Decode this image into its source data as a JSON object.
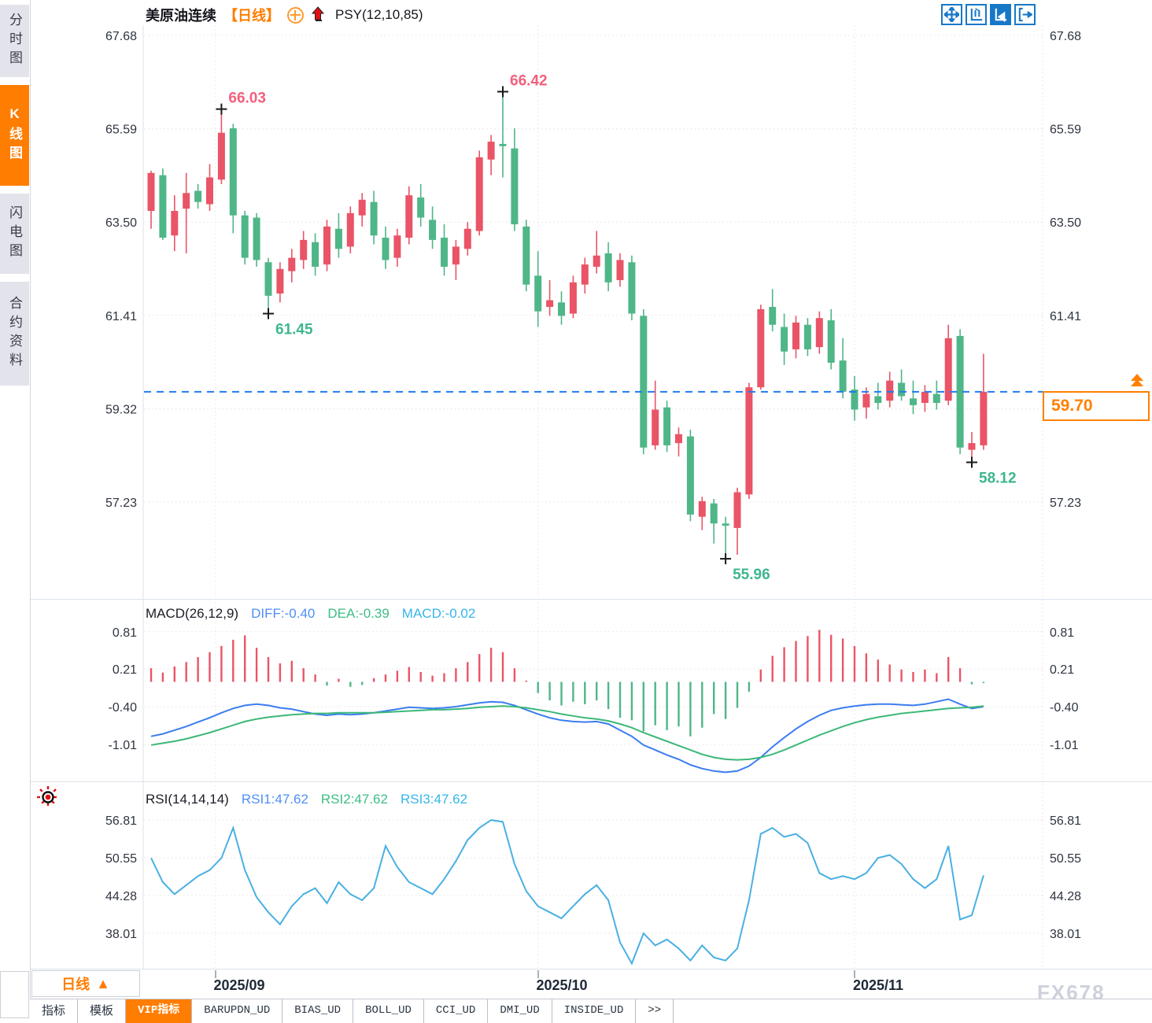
{
  "window": {
    "watermark": "FX678"
  },
  "sidebar": {
    "items": [
      {
        "label": "分时图",
        "active": false
      },
      {
        "label": "K线图",
        "active": true
      },
      {
        "label": "闪电图",
        "active": false
      },
      {
        "label": "合约资料",
        "active": false
      }
    ]
  },
  "header": {
    "title": "美原油连续",
    "period_tag": "【日线】",
    "indicator": "PSY(12,10,85)"
  },
  "toolbar_icons": [
    "pan-crosshair-icon",
    "axis-zoom-icon",
    "chart-zoom-icon",
    "shift-right-icon"
  ],
  "macd_header": {
    "name": "MACD(26,12,9)",
    "diff": "DIFF:-0.40",
    "dea": "DEA:-0.39",
    "macd": "MACD:-0.02"
  },
  "rsi_header": {
    "name": "RSI(14,14,14)",
    "rsi1": "RSI1:47.62",
    "rsi2": "RSI2:47.62",
    "rsi3": "RSI3:47.62"
  },
  "price_box": {
    "value": "59.70"
  },
  "period_button": {
    "label": "日线",
    "arrow": "▲"
  },
  "bottom_tabs": {
    "items": [
      {
        "label": "指标",
        "active": false
      },
      {
        "label": "模板",
        "active": false
      },
      {
        "label": "VIP指标",
        "active": true
      },
      {
        "label": "BARUPDN_UD",
        "active": false
      },
      {
        "label": "BIAS_UD",
        "active": false
      },
      {
        "label": "BOLL_UD",
        "active": false
      },
      {
        "label": "CCI_UD",
        "active": false
      },
      {
        "label": "DMI_UD",
        "active": false
      },
      {
        "label": "INSIDE_UD",
        "active": false
      },
      {
        "label": ">>",
        "active": false
      }
    ]
  },
  "colors": {
    "accent_orange": "#ff7d00",
    "candle_up": "#ea5467",
    "candle_down": "#4fb687",
    "diff_line": "#3b7df0",
    "dea_line": "#3cb878",
    "rsi_line": "#49b0e3",
    "current_price_line": "#1f7bf0",
    "high_label": "#f2607d",
    "low_label": "#3eb690",
    "icon_blue": "#1878c8",
    "grid": "#e3e3e3"
  },
  "chart_data": [
    {
      "type": "candlestick",
      "title": "美原油连续 日线",
      "y_ticks": [
        67.68,
        65.59,
        63.5,
        61.41,
        59.32,
        57.23
      ],
      "current_price": 59.7,
      "x_labels": [
        "2025/09",
        "2025/10",
        "2025/11"
      ],
      "markers": {
        "highs": [
          {
            "index": 6,
            "label": "66.03"
          },
          {
            "index": 30,
            "label": "66.42"
          }
        ],
        "lows": [
          {
            "index": 10,
            "label": "61.45"
          },
          {
            "index": 49,
            "label": "55.96"
          },
          {
            "index": 70,
            "label": "58.12"
          }
        ]
      },
      "candles": [
        [
          63.75,
          64.65,
          63.35,
          64.6
        ],
        [
          64.55,
          64.7,
          63.1,
          63.15
        ],
        [
          63.2,
          64.1,
          62.85,
          63.75
        ],
        [
          63.8,
          64.6,
          62.8,
          64.15
        ],
        [
          64.2,
          64.35,
          63.8,
          63.95
        ],
        [
          63.9,
          64.8,
          63.75,
          64.5
        ],
        [
          64.45,
          66.03,
          64.35,
          65.5
        ],
        [
          65.6,
          65.7,
          63.25,
          63.65
        ],
        [
          63.65,
          63.75,
          62.55,
          62.7
        ],
        [
          63.6,
          63.7,
          62.5,
          62.65
        ],
        [
          62.6,
          62.7,
          61.45,
          61.85
        ],
        [
          61.9,
          62.6,
          61.7,
          62.45
        ],
        [
          62.4,
          62.9,
          62.15,
          62.7
        ],
        [
          62.65,
          63.3,
          62.45,
          63.1
        ],
        [
          63.05,
          63.25,
          62.3,
          62.5
        ],
        [
          62.55,
          63.55,
          62.4,
          63.4
        ],
        [
          63.35,
          63.7,
          62.7,
          62.9
        ],
        [
          62.95,
          63.85,
          62.8,
          63.7
        ],
        [
          63.65,
          64.15,
          63.4,
          64.0
        ],
        [
          63.95,
          64.2,
          63.0,
          63.2
        ],
        [
          63.15,
          63.4,
          62.45,
          62.65
        ],
        [
          62.7,
          63.35,
          62.5,
          63.2
        ],
        [
          63.15,
          64.3,
          63.0,
          64.1
        ],
        [
          64.05,
          64.35,
          63.4,
          63.6
        ],
        [
          63.55,
          63.85,
          62.9,
          63.1
        ],
        [
          63.15,
          63.45,
          62.3,
          62.5
        ],
        [
          62.55,
          63.1,
          62.2,
          62.95
        ],
        [
          62.9,
          63.5,
          62.75,
          63.35
        ],
        [
          63.3,
          65.1,
          63.2,
          64.95
        ],
        [
          64.9,
          65.45,
          64.55,
          65.3
        ],
        [
          65.25,
          66.42,
          64.5,
          65.2
        ],
        [
          65.15,
          65.6,
          63.3,
          63.45
        ],
        [
          63.4,
          63.55,
          61.95,
          62.1
        ],
        [
          62.3,
          62.85,
          61.15,
          61.5
        ],
        [
          61.6,
          62.2,
          61.4,
          61.75
        ],
        [
          61.7,
          61.95,
          61.2,
          61.4
        ],
        [
          61.45,
          62.3,
          61.35,
          62.15
        ],
        [
          62.1,
          62.7,
          61.9,
          62.55
        ],
        [
          62.5,
          63.3,
          62.35,
          62.75
        ],
        [
          62.8,
          63.05,
          61.95,
          62.15
        ],
        [
          62.2,
          62.8,
          62.05,
          62.65
        ],
        [
          62.6,
          62.75,
          61.3,
          61.45
        ],
        [
          61.4,
          61.55,
          58.3,
          58.45
        ],
        [
          58.5,
          59.95,
          58.4,
          59.3
        ],
        [
          59.35,
          59.5,
          58.35,
          58.5
        ],
        [
          58.55,
          58.9,
          58.25,
          58.75
        ],
        [
          58.7,
          58.85,
          56.8,
          56.95
        ],
        [
          56.9,
          57.35,
          56.6,
          57.25
        ],
        [
          57.2,
          57.3,
          56.3,
          56.75
        ],
        [
          56.75,
          56.9,
          55.96,
          56.7
        ],
        [
          56.65,
          57.55,
          56.05,
          57.45
        ],
        [
          57.4,
          59.9,
          57.3,
          59.8
        ],
        [
          59.8,
          61.65,
          59.75,
          61.55
        ],
        [
          61.6,
          62.0,
          61.05,
          61.2
        ],
        [
          61.15,
          61.45,
          60.3,
          60.6
        ],
        [
          60.65,
          61.4,
          60.45,
          61.25
        ],
        [
          61.2,
          61.35,
          60.5,
          60.65
        ],
        [
          60.7,
          61.5,
          60.55,
          61.35
        ],
        [
          61.3,
          61.55,
          60.2,
          60.35
        ],
        [
          60.4,
          60.9,
          59.55,
          59.7
        ],
        [
          59.75,
          60.05,
          59.05,
          59.3
        ],
        [
          59.35,
          59.8,
          59.1,
          59.65
        ],
        [
          59.6,
          59.9,
          59.3,
          59.45
        ],
        [
          59.5,
          60.15,
          59.35,
          59.95
        ],
        [
          59.9,
          60.2,
          59.5,
          59.6
        ],
        [
          59.55,
          59.95,
          59.2,
          59.4
        ],
        [
          59.45,
          59.85,
          59.25,
          59.7
        ],
        [
          59.65,
          59.95,
          59.3,
          59.45
        ],
        [
          59.5,
          61.2,
          59.4,
          60.9
        ],
        [
          60.95,
          61.1,
          58.3,
          58.45
        ],
        [
          58.4,
          58.8,
          58.12,
          58.55
        ],
        [
          58.5,
          60.55,
          58.4,
          59.7
        ]
      ]
    },
    {
      "type": "bar",
      "name": "MACD(26,12,9)",
      "y_ticks": [
        0.81,
        0.21,
        -0.4,
        -1.01
      ],
      "values": {
        "DIFF": -0.4,
        "DEA": -0.39,
        "MACD": -0.02
      },
      "histogram": [
        0.22,
        0.15,
        0.25,
        0.32,
        0.4,
        0.48,
        0.58,
        0.68,
        0.75,
        0.55,
        0.4,
        0.3,
        0.34,
        0.22,
        0.12,
        -0.06,
        0.05,
        -0.08,
        -0.05,
        0.06,
        0.12,
        0.18,
        0.24,
        0.16,
        0.1,
        0.14,
        0.22,
        0.32,
        0.45,
        0.55,
        0.48,
        0.22,
        0.02,
        -0.18,
        -0.3,
        -0.38,
        -0.32,
        -0.36,
        -0.3,
        -0.44,
        -0.58,
        -0.62,
        -0.8,
        -0.7,
        -0.78,
        -0.72,
        -0.88,
        -0.74,
        -0.52,
        -0.6,
        -0.42,
        -0.16,
        0.2,
        0.42,
        0.56,
        0.66,
        0.74,
        0.84,
        0.76,
        0.7,
        0.58,
        0.46,
        0.36,
        0.28,
        0.2,
        0.16,
        0.2,
        0.14,
        0.4,
        0.22,
        -0.04,
        -0.02
      ],
      "diff": [
        -0.88,
        -0.84,
        -0.78,
        -0.72,
        -0.65,
        -0.58,
        -0.5,
        -0.43,
        -0.38,
        -0.36,
        -0.38,
        -0.42,
        -0.44,
        -0.48,
        -0.52,
        -0.54,
        -0.52,
        -0.53,
        -0.52,
        -0.5,
        -0.47,
        -0.44,
        -0.41,
        -0.42,
        -0.43,
        -0.42,
        -0.4,
        -0.37,
        -0.34,
        -0.32,
        -0.33,
        -0.38,
        -0.45,
        -0.52,
        -0.58,
        -0.62,
        -0.64,
        -0.65,
        -0.64,
        -0.68,
        -0.78,
        -0.88,
        -1.02,
        -1.1,
        -1.18,
        -1.25,
        -1.34,
        -1.4,
        -1.44,
        -1.46,
        -1.44,
        -1.36,
        -1.22,
        -1.05,
        -0.9,
        -0.76,
        -0.64,
        -0.54,
        -0.46,
        -0.42,
        -0.39,
        -0.37,
        -0.36,
        -0.36,
        -0.37,
        -0.38,
        -0.36,
        -0.32,
        -0.28,
        -0.36,
        -0.43,
        -0.4
      ],
      "dea": [
        -1.02,
        -0.99,
        -0.96,
        -0.92,
        -0.87,
        -0.82,
        -0.76,
        -0.7,
        -0.64,
        -0.6,
        -0.57,
        -0.55,
        -0.53,
        -0.52,
        -0.51,
        -0.51,
        -0.5,
        -0.5,
        -0.5,
        -0.5,
        -0.49,
        -0.48,
        -0.47,
        -0.46,
        -0.45,
        -0.45,
        -0.44,
        -0.43,
        -0.41,
        -0.4,
        -0.39,
        -0.4,
        -0.42,
        -0.45,
        -0.48,
        -0.52,
        -0.55,
        -0.58,
        -0.6,
        -0.63,
        -0.68,
        -0.74,
        -0.82,
        -0.89,
        -0.96,
        -1.03,
        -1.1,
        -1.17,
        -1.22,
        -1.25,
        -1.26,
        -1.25,
        -1.22,
        -1.17,
        -1.1,
        -1.02,
        -0.94,
        -0.86,
        -0.79,
        -0.72,
        -0.66,
        -0.61,
        -0.57,
        -0.54,
        -0.51,
        -0.49,
        -0.47,
        -0.45,
        -0.43,
        -0.42,
        -0.41,
        -0.39
      ]
    },
    {
      "type": "line",
      "name": "RSI(14,14,14)",
      "y_ticks": [
        56.81,
        50.55,
        44.28,
        38.01
      ],
      "values": {
        "RSI1": 47.62,
        "RSI2": 47.62,
        "RSI3": 47.62
      },
      "rsi": [
        50.5,
        46.5,
        44.5,
        46.0,
        47.5,
        48.5,
        50.5,
        55.5,
        48.5,
        44.0,
        41.5,
        39.5,
        42.5,
        44.5,
        45.5,
        43.0,
        46.5,
        44.5,
        43.5,
        45.5,
        52.5,
        49.0,
        46.5,
        45.5,
        44.5,
        47.0,
        50.0,
        53.5,
        55.5,
        56.8,
        56.5,
        49.5,
        45.0,
        42.5,
        41.5,
        40.5,
        42.5,
        44.5,
        46.0,
        43.5,
        36.5,
        33.0,
        38.0,
        36.0,
        37.0,
        35.5,
        33.5,
        36.0,
        34.0,
        33.5,
        35.5,
        43.5,
        54.5,
        55.5,
        54.0,
        54.5,
        53.0,
        48.0,
        47.0,
        47.5,
        47.0,
        48.0,
        50.5,
        51.0,
        49.5,
        47.0,
        45.5,
        47.0,
        52.5,
        40.3,
        41.0,
        47.62
      ]
    }
  ]
}
